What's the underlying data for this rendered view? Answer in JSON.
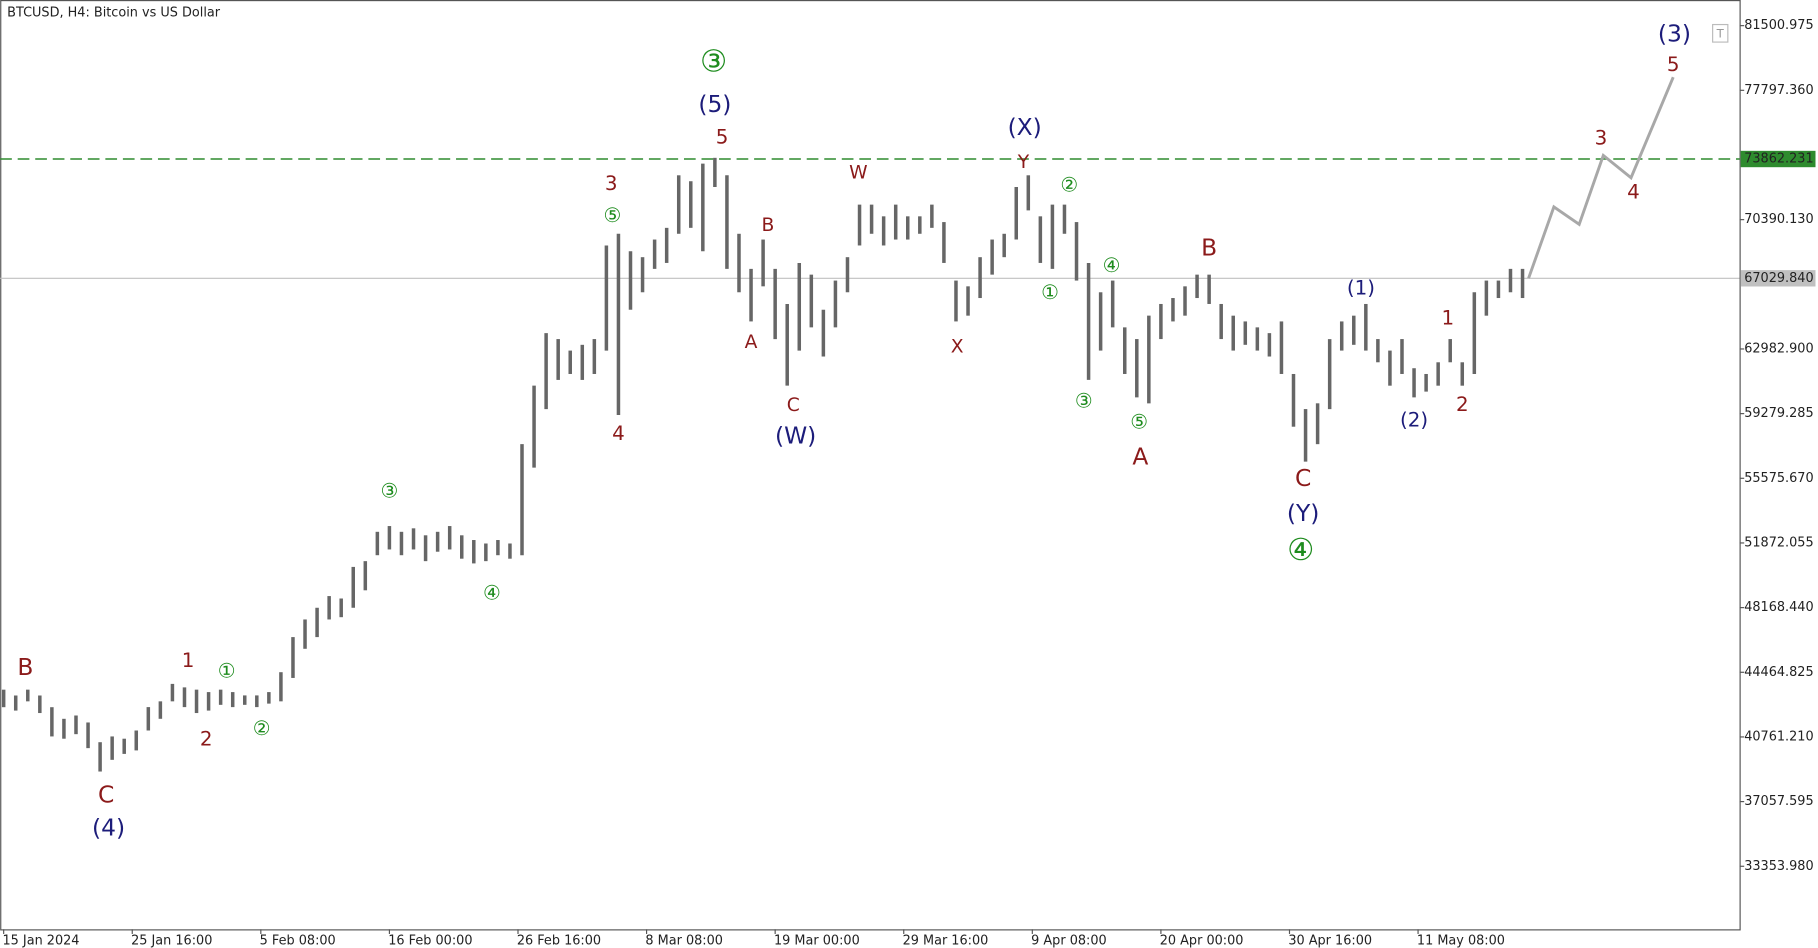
{
  "chart_data": {
    "type": "ohlc",
    "title": "BTCUSD, H4:  Bitcoin vs US Dollar",
    "color": "#666666",
    "xlim": [
      0,
      144
    ],
    "ylim": [
      29744,
      82970
    ],
    "xticks": [
      {
        "value": 0,
        "label": "15 Jan 2024"
      },
      {
        "value": 10.667,
        "label": "25 Jan 16:00"
      },
      {
        "value": 21.333,
        "label": "5 Feb 08:00"
      },
      {
        "value": 32,
        "label": "16 Feb 00:00"
      },
      {
        "value": 42.667,
        "label": "26 Feb 16:00"
      },
      {
        "value": 53.333,
        "label": "8 Mar 08:00"
      },
      {
        "value": 64,
        "label": "19 Mar 00:00"
      },
      {
        "value": 74.667,
        "label": "29 Mar 16:00"
      },
      {
        "value": 85.333,
        "label": "9 Apr 08:00"
      },
      {
        "value": 96,
        "label": "20 Apr 00:00"
      },
      {
        "value": 106.667,
        "label": "30 Apr 16:00"
      },
      {
        "value": 117.333,
        "label": "11 May 08:00"
      }
    ],
    "yticks": [
      81500.975,
      {
        "value": 77797.36,
        "label": "77797.360"
      },
      {
        "value": 70390.13,
        "label": "70390.130"
      },
      {
        "value": 62982.9,
        "label": "62982.900"
      },
      59279.285,
      {
        "value": 55575.67,
        "label": "55575.670"
      },
      51872.055,
      {
        "value": 48168.44,
        "label": "48168.440"
      },
      44464.825,
      {
        "value": 40761.21,
        "label": "40761.210"
      },
      37057.595,
      {
        "value": 33353.98,
        "label": "33353.980"
      }
    ],
    "levels": [
      {
        "value": 73862.231,
        "color": "#2e8b2e",
        "dashed": true
      },
      {
        "value": 67029.84,
        "label": "67029.840",
        "color": "#c0c0c0",
        "dashed": false
      }
    ],
    "high": [
      43469,
      43135,
      43470,
      43135,
      42465,
      41800,
      41990,
      41590,
      40460,
      40790,
      40660,
      41130,
      42470,
      42800,
      43800,
      43600,
      43470,
      43330,
      43470,
      43330,
      43140,
      43140,
      43330,
      44470,
      46480,
      47490,
      48160,
      48830,
      48690,
      50500,
      50830,
      52510,
      52840,
      52510,
      52710,
      52310,
      52510,
      52840,
      52310,
      52040,
      51840,
      52040,
      51840,
      57530,
      60880,
      63890,
      63550,
      62890,
      63220,
      63550,
      68910,
      69580,
      68580,
      68240,
      69250,
      69920,
      72930,
      72590,
      73600,
      73930,
      72930,
      69580,
      67570,
      69250,
      67570,
      65560,
      67910,
      67240,
      65230,
      66900,
      68240,
      71250,
      71250,
      70580,
      71250,
      70580,
      70580,
      71250,
      70250,
      66900,
      66570,
      68240,
      69250,
      69580,
      72260,
      72930,
      70580,
      71250,
      71250,
      70250,
      67910,
      66230,
      66900,
      64220,
      63550,
      64890,
      65560,
      65900,
      66570,
      67240,
      67240,
      65560,
      64890,
      64560,
      64220,
      63890,
      64560,
      61550,
      59540,
      59870,
      63550,
      64560,
      64890,
      65560,
      63550,
      62890,
      63550,
      61880,
      61550,
      62220,
      63550,
      62220,
      66230,
      66900,
      66900,
      67570,
      67570
    ],
    "low": [
      42465,
      42270,
      42800,
      42130,
      40790,
      40660,
      40920,
      40120,
      38780,
      39450,
      39790,
      39990,
      41130,
      41800,
      42800,
      42470,
      42130,
      42270,
      42600,
      42470,
      42600,
      42470,
      42670,
      42800,
      44140,
      45810,
      46480,
      47490,
      47620,
      48160,
      49160,
      51170,
      51500,
      51170,
      51500,
      50830,
      51370,
      51500,
      50970,
      50700,
      50830,
      51170,
      50970,
      51170,
      56190,
      59540,
      61210,
      61550,
      61210,
      61550,
      62890,
      59200,
      65230,
      66230,
      67570,
      67910,
      69580,
      69920,
      68580,
      72260,
      67570,
      66230,
      64560,
      66570,
      63550,
      60880,
      62890,
      64220,
      62550,
      64220,
      66230,
      68910,
      69580,
      68910,
      69250,
      69250,
      69580,
      69920,
      67910,
      64560,
      64890,
      65900,
      67240,
      68240,
      69250,
      70920,
      67910,
      67570,
      69580,
      66900,
      61210,
      62890,
      64220,
      61550,
      60210,
      59870,
      63550,
      64560,
      64890,
      65900,
      65560,
      63550,
      62890,
      63220,
      62890,
      62550,
      61550,
      58530,
      56530,
      57530,
      59540,
      62890,
      63220,
      62890,
      62220,
      60880,
      61550,
      60210,
      60540,
      60880,
      62220,
      60880,
      61550,
      64890,
      65900,
      66230,
      65900
    ],
    "forecast": {
      "color": "#a8a8a8",
      "x": [
        126.5,
        128.6,
        130.7,
        132.7,
        135,
        138.5
      ],
      "values": [
        67030,
        71120,
        70120,
        74070,
        72790,
        78550
      ]
    },
    "annotations": [
      {
        "text": "B",
        "x": 1.8,
        "y": 44680,
        "color": "#8b1a1a"
      },
      {
        "text": "C",
        "x": 8.5,
        "y": 37380,
        "color": "#8b1a1a"
      },
      {
        "text": "(4)",
        "x": 8.7,
        "y": 35500,
        "color": "#1c1c7a"
      },
      {
        "text": "1",
        "x": 15.3,
        "y": 45080,
        "color": "#8b1a1a"
      },
      {
        "text": "①",
        "x": 18.5,
        "y": 44470,
        "color": "#1e8c1e"
      },
      {
        "text": "2",
        "x": 16.8,
        "y": 40590,
        "color": "#8b1a1a"
      },
      {
        "text": "②",
        "x": 21.4,
        "y": 41190,
        "color": "#1e8c1e"
      },
      {
        "text": "③",
        "x": 32.0,
        "y": 54780,
        "color": "#1e8c1e"
      },
      {
        "text": "④",
        "x": 40.5,
        "y": 48960,
        "color": "#1e8c1e"
      },
      {
        "text": "3",
        "x": 50.4,
        "y": 72390,
        "color": "#8b1a1a"
      },
      {
        "text": "⑤",
        "x": 50.5,
        "y": 70580,
        "color": "#1e8c1e"
      },
      {
        "text": "4",
        "x": 51.0,
        "y": 58070,
        "color": "#8b1a1a"
      },
      {
        "text": "③",
        "x": 58.9,
        "y": 79350,
        "color": "#1e8c1e"
      },
      {
        "text": "(5)",
        "x": 59.0,
        "y": 76940,
        "color": "#1c1c7a"
      },
      {
        "text": "5",
        "x": 59.6,
        "y": 75070,
        "color": "#8b1a1a"
      },
      {
        "text": "B",
        "x": 63.4,
        "y": 70050,
        "color": "#8b1a1a"
      },
      {
        "text": "A",
        "x": 62.0,
        "y": 63350,
        "color": "#8b1a1a"
      },
      {
        "text": "C",
        "x": 65.5,
        "y": 59740,
        "color": "#8b1a1a"
      },
      {
        "text": "(W)",
        "x": 65.7,
        "y": 57930,
        "color": "#1c1c7a"
      },
      {
        "text": "W",
        "x": 70.9,
        "y": 73060,
        "color": "#8b1a1a"
      },
      {
        "text": "X",
        "x": 79.1,
        "y": 63090,
        "color": "#8b1a1a"
      },
      {
        "text": "(X)",
        "x": 84.7,
        "y": 75610,
        "color": "#1c1c7a"
      },
      {
        "text": "Y",
        "x": 84.6,
        "y": 73660,
        "color": "#8b1a1a"
      },
      {
        "text": "②",
        "x": 88.4,
        "y": 72330,
        "color": "#1e8c1e"
      },
      {
        "text": "①",
        "x": 86.8,
        "y": 66170,
        "color": "#1e8c1e"
      },
      {
        "text": "④",
        "x": 91.9,
        "y": 67710,
        "color": "#1e8c1e"
      },
      {
        "text": "③",
        "x": 89.6,
        "y": 59940,
        "color": "#1e8c1e"
      },
      {
        "text": "⑤",
        "x": 94.2,
        "y": 58730,
        "color": "#1e8c1e"
      },
      {
        "text": "A",
        "x": 94.3,
        "y": 56730,
        "color": "#8b1a1a"
      },
      {
        "text": "B",
        "x": 100.0,
        "y": 68710,
        "color": "#8b1a1a"
      },
      {
        "text": "(1)",
        "x": 112.6,
        "y": 66430,
        "color": "#1c1c7a"
      },
      {
        "text": "C",
        "x": 107.8,
        "y": 55520,
        "color": "#8b1a1a"
      },
      {
        "text": "(Y)",
        "x": 107.8,
        "y": 53510,
        "color": "#1c1c7a"
      },
      {
        "text": "④",
        "x": 107.6,
        "y": 51370,
        "color": "#1e8c1e"
      },
      {
        "text": "(2)",
        "x": 117.0,
        "y": 58870,
        "color": "#1c1c7a"
      },
      {
        "text": "1",
        "x": 119.8,
        "y": 64690,
        "color": "#8b1a1a"
      },
      {
        "text": "2",
        "x": 121.0,
        "y": 59740,
        "color": "#8b1a1a"
      },
      {
        "text": "3",
        "x": 132.5,
        "y": 75000,
        "color": "#8b1a1a"
      },
      {
        "text": "4",
        "x": 135.2,
        "y": 71920,
        "color": "#8b1a1a"
      },
      {
        "text": "(3)",
        "x": 138.6,
        "y": 80960,
        "color": "#1c1c7a"
      },
      {
        "text": "5",
        "x": 138.5,
        "y": 79220,
        "color": "#8b1a1a"
      }
    ]
  }
}
